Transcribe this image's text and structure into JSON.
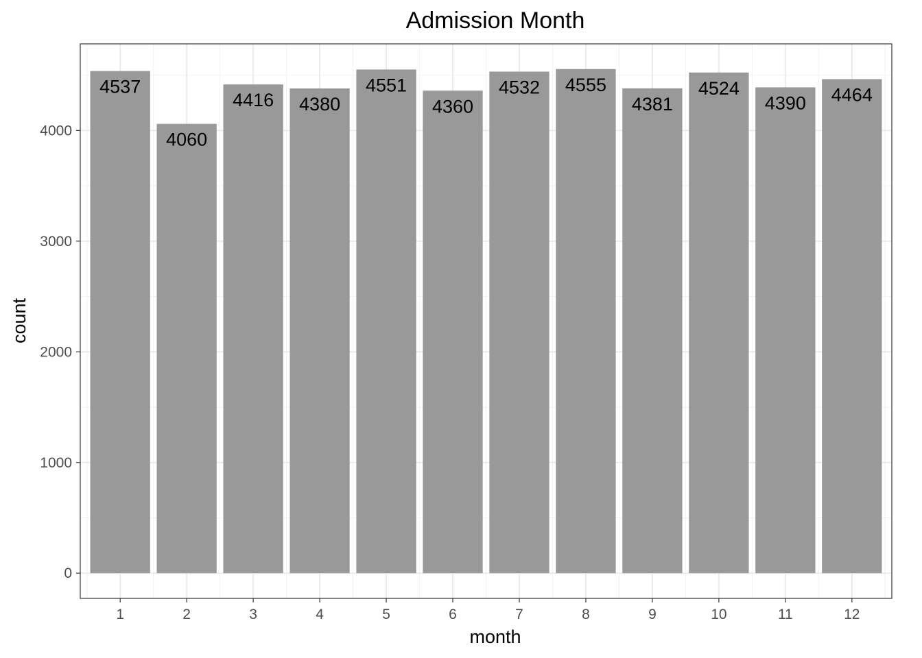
{
  "chart_data": {
    "type": "bar",
    "title": "Admission Month",
    "xlabel": "month",
    "ylabel": "count",
    "categories": [
      "1",
      "2",
      "3",
      "4",
      "5",
      "6",
      "7",
      "8",
      "9",
      "10",
      "11",
      "12"
    ],
    "values": [
      4537,
      4060,
      4416,
      4380,
      4551,
      4360,
      4532,
      4555,
      4381,
      4524,
      4390,
      4464
    ],
    "data_labels": [
      "4537",
      "4060",
      "4416",
      "4380",
      "4551",
      "4360",
      "4532",
      "4555",
      "4381",
      "4524",
      "4390",
      "4464"
    ],
    "y_ticks": [
      0,
      1000,
      2000,
      3000,
      4000
    ],
    "y_tick_labels": [
      "0",
      "1000",
      "2000",
      "3000",
      "4000"
    ],
    "ylim": [
      -227.75,
      4782.75
    ],
    "grid": true,
    "legend": "none",
    "bar_color": "#999999",
    "theme": "bw"
  }
}
